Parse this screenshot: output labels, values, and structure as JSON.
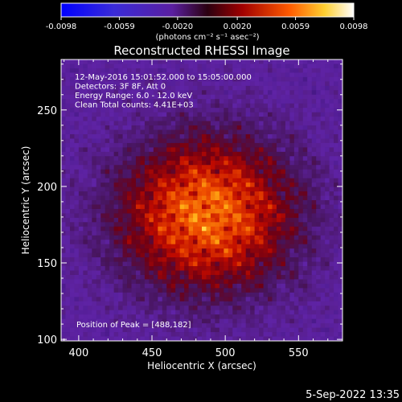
{
  "colorbar": {
    "ticks": [
      "-0.0098",
      "-0.0059",
      "-0.0020",
      "0.0020",
      "0.0059",
      "0.0098"
    ],
    "unit_label": "(photons cm⁻² s⁻¹ asec⁻²)",
    "range": [
      -0.0098,
      0.0098
    ]
  },
  "chart_data": {
    "type": "heatmap",
    "title": "Reconstructed RHESSI Image",
    "xlabel": "Heliocentric X (arcsec)",
    "ylabel": "Heliocentric Y (arcsec)",
    "xlim": [
      388,
      580
    ],
    "ylim": [
      99,
      283
    ],
    "x_ticks": [
      400,
      450,
      500,
      550
    ],
    "y_ticks": [
      100,
      150,
      200,
      250
    ],
    "peak": [
      488,
      182
    ],
    "annotations": [
      "12-May-2016 15:01:52.000 to 15:05:00.000",
      "Detectors: 3F 8F, Att 0",
      "Energy Range: 6.0 - 12.0 keV",
      "Clean     Total counts: 4.41E+03"
    ],
    "peak_label": "Position of Peak = [488,182]"
  },
  "footer_date": "5-Sep-2022 13:35"
}
